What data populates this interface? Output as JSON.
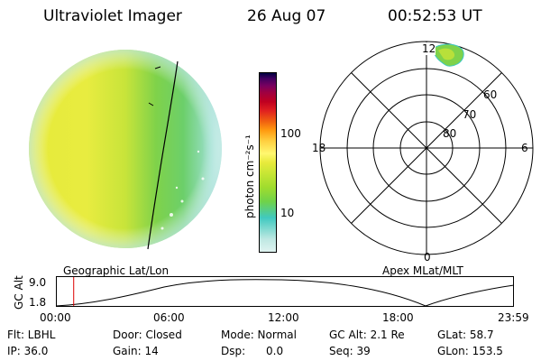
{
  "header": {
    "instrument": "Ultraviolet Imager",
    "date": "26 Aug 07",
    "time": "00:52:53 UT"
  },
  "colorbar": {
    "label": "photon cm⁻²s⁻¹",
    "ticks": [
      "100",
      "10"
    ],
    "colors": [
      "#dff3f0",
      "#bfe8e3",
      "#7fd9d0",
      "#40c9c0",
      "#6fd24a",
      "#9fdc2e",
      "#c8e635",
      "#e8ea3c",
      "#fff870",
      "#ffcf40",
      "#ff9a10",
      "#f06010",
      "#e02020",
      "#c00020",
      "#a00040",
      "#780060",
      "#400060",
      "#000040"
    ]
  },
  "left_panel": {
    "caption": "Geographic Lat/Lon"
  },
  "polar_plot": {
    "caption": "Apex MLat/MLT",
    "mlt_labels": {
      "top": "12",
      "bottom": "0",
      "left": "18",
      "right": "6"
    },
    "lat_labels": [
      "60",
      "70",
      "80"
    ]
  },
  "altitude_plot": {
    "ylabel": "GC Alt",
    "yticks": [
      "9.0",
      "1.8"
    ],
    "xticks": [
      "00:00",
      "06:00",
      "12:00",
      "18:00",
      "23:59"
    ],
    "marker_time_fraction": 0.037,
    "marker_color": "#dd0000"
  },
  "info": {
    "row1": {
      "flt": "Flt: LBHL",
      "door": "Door: Closed",
      "mode": "Mode: Normal",
      "gcalt": "GC Alt: 2.1 Re",
      "glat": "GLat: 58.7"
    },
    "row2": {
      "ip": "IP: 36.0",
      "gain": "Gain: 14",
      "dsp": "Dsp:      0.0",
      "seq": "Seq: 39",
      "glon": "GLon: 153.5"
    }
  }
}
